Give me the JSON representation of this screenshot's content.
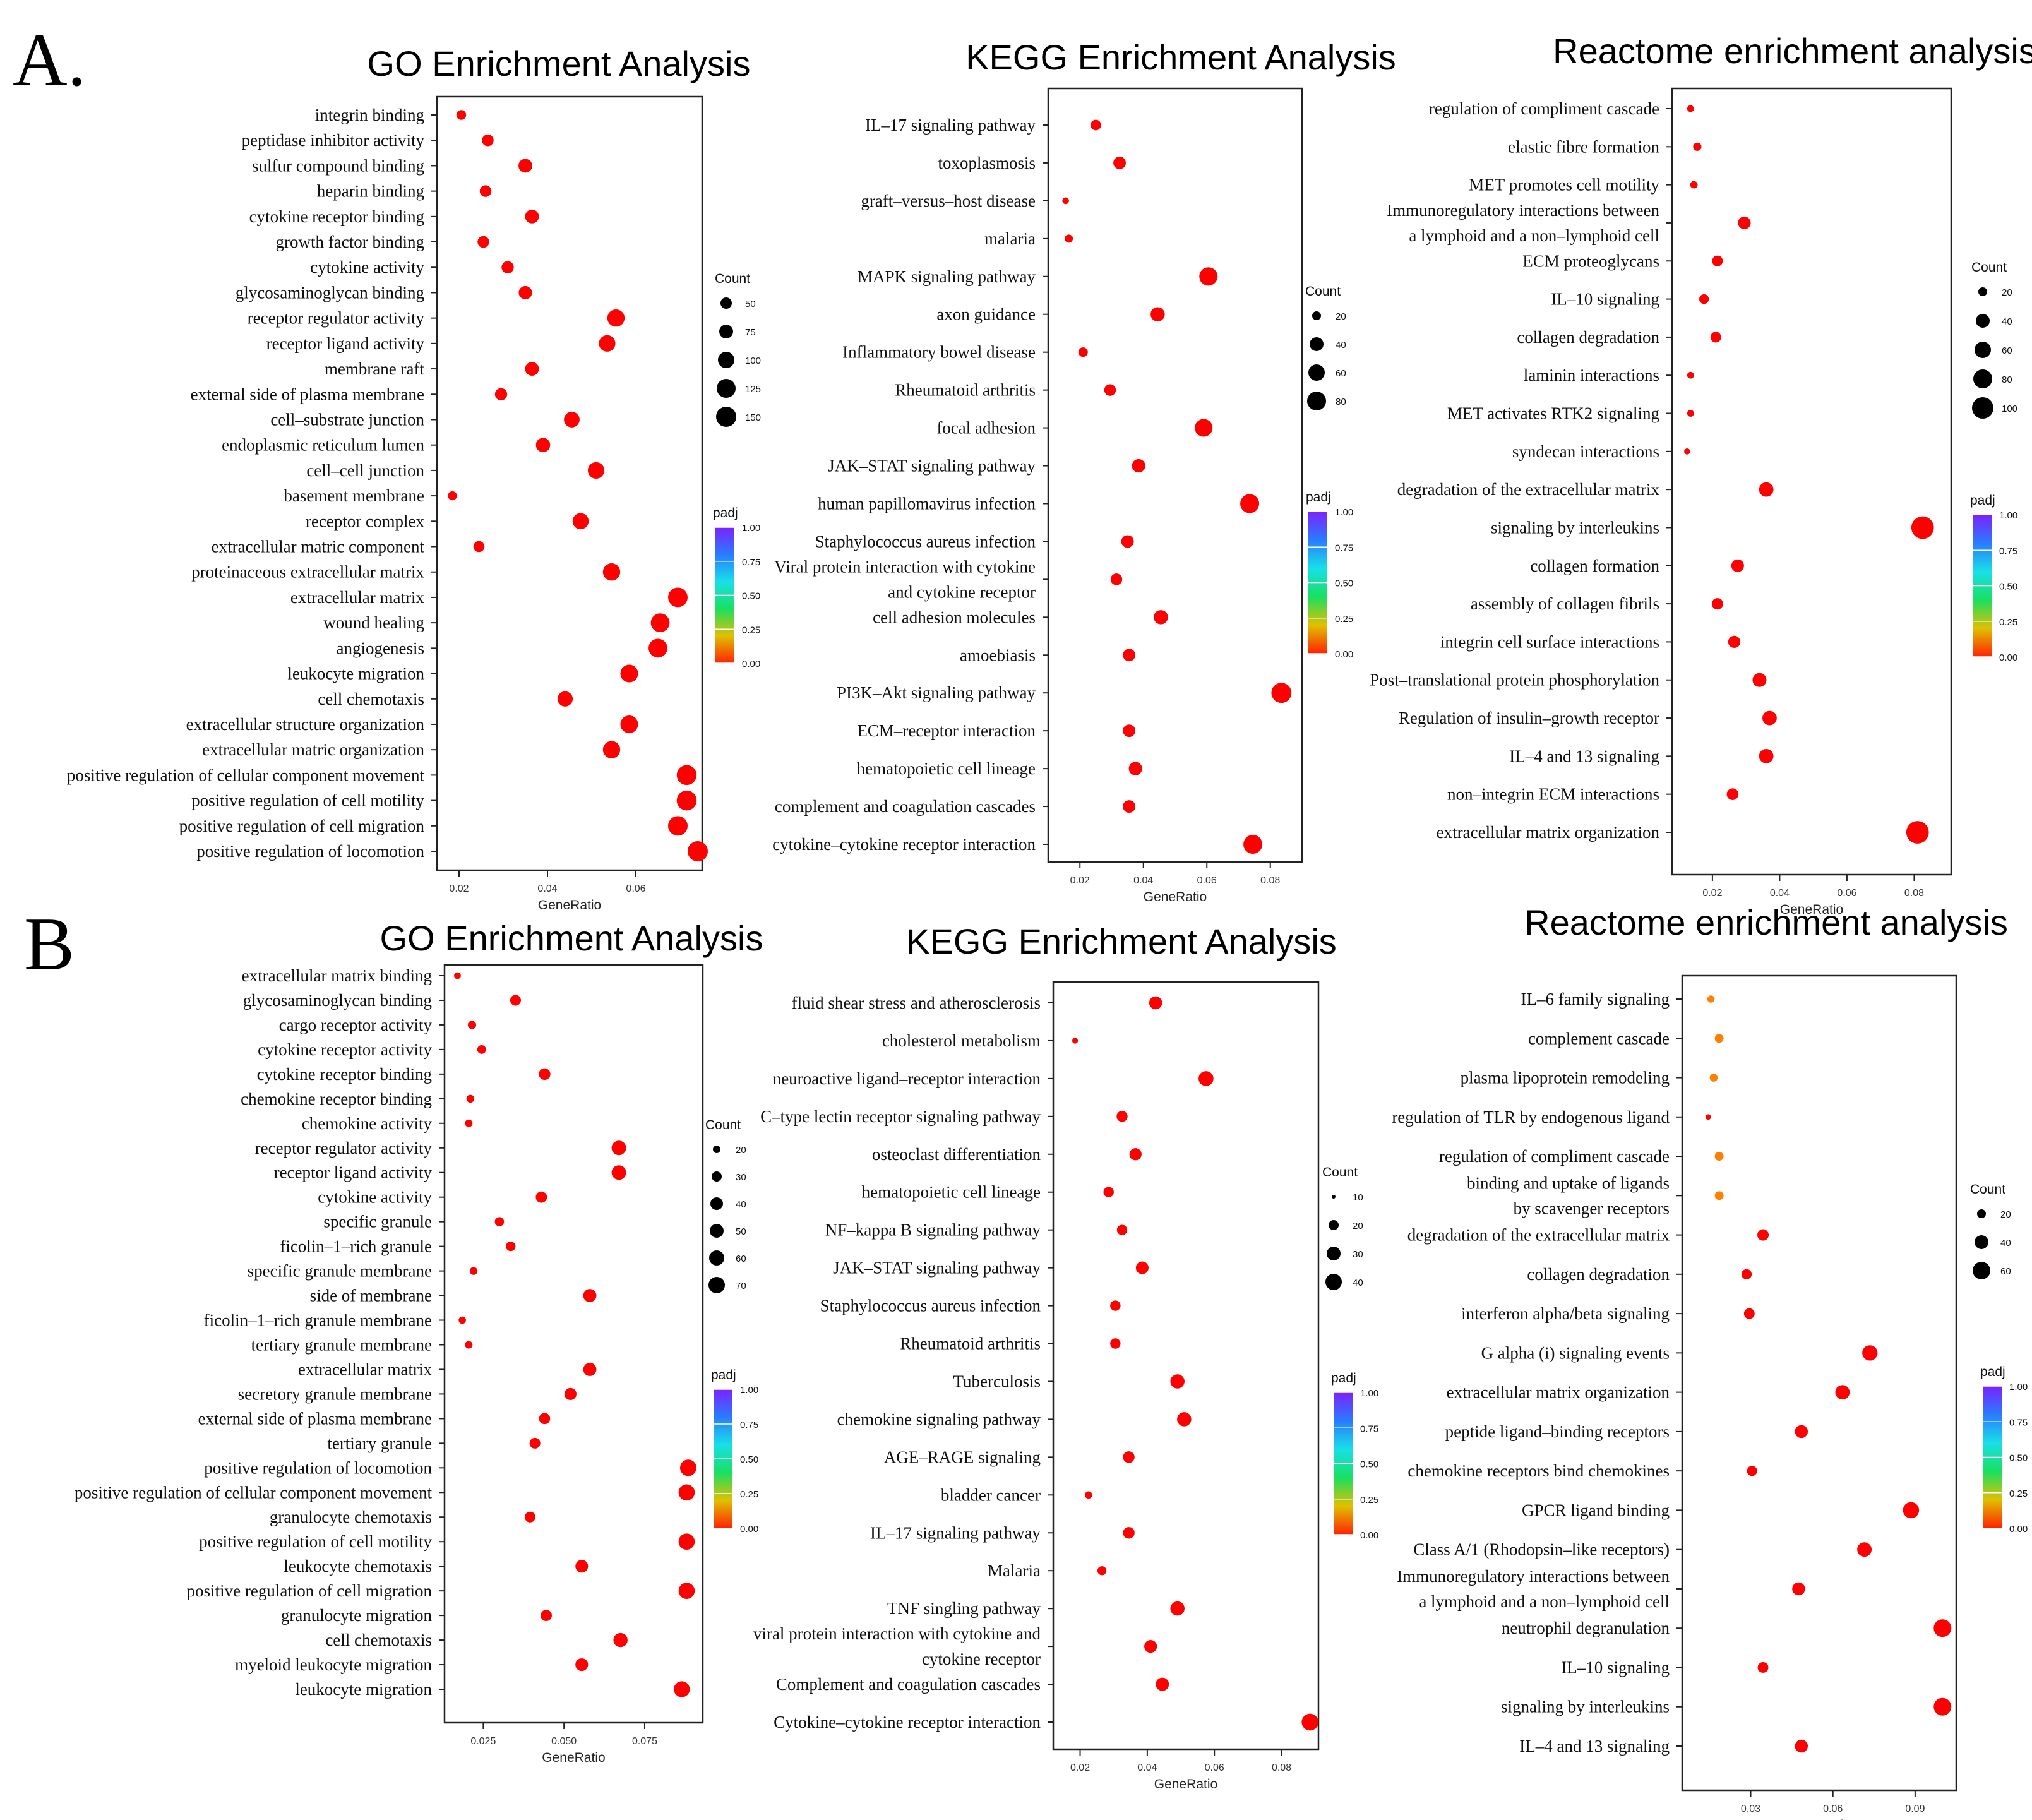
{
  "panel_labels": [
    "A.",
    "B"
  ],
  "legend_text": {
    "count": "Count",
    "padj": "padj",
    "padj_ticks": [
      "1.00",
      "0.75",
      "0.50",
      "0.25",
      "0.00"
    ]
  },
  "colors": {
    "high_sig": "#ff0000",
    "low_sig": "#ff7f00",
    "frame": "#222222"
  },
  "chart_data": [
    {
      "type": "scatter",
      "title": "GO Enrichment Analysis",
      "xlabel": "GeneRatio",
      "xlim": [
        0.015,
        0.075
      ],
      "xticks": [
        0.02,
        0.04,
        0.06
      ],
      "tick_labels": [
        "0.02",
        "0.04",
        "0.06"
      ],
      "count_legend": [
        50,
        75,
        100,
        125,
        150
      ],
      "terms": [
        "integrin binding",
        "peptidase inhibitor activity",
        "sulfur compound binding",
        "heparin binding",
        "cytokine receptor binding",
        "growth factor binding",
        "cytokine activity",
        "glycosaminoglycan binding",
        "receptor regulator activity",
        "receptor ligand activity",
        "membrane raft",
        "external side of plasma membrane",
        "cell–substrate junction",
        "endoplasmic reticulum lumen",
        "cell–cell junction",
        "basement membrane",
        "receptor complex",
        "extracellular matric component",
        "proteinaceous extracellular matrix",
        "extracellular matrix",
        "wound healing",
        "angiogenesis",
        "leukocyte migration",
        "cell chemotaxis",
        "extracellular structure organization",
        "extracellular matric organization",
        "positive regulation of cellular component movement",
        "positive regulation of cell motility",
        "positive regulation of cell migration",
        "positive regulation of locomotion"
      ],
      "x": [
        0.0205,
        0.0265,
        0.035,
        0.026,
        0.0365,
        0.0255,
        0.031,
        0.035,
        0.0555,
        0.0535,
        0.0365,
        0.0295,
        0.0455,
        0.039,
        0.051,
        0.0185,
        0.0475,
        0.0245,
        0.0545,
        0.0695,
        0.0655,
        0.065,
        0.0585,
        0.044,
        0.0585,
        0.0545,
        0.0715,
        0.0715,
        0.0695,
        0.074
      ],
      "count": [
        35,
        50,
        70,
        50,
        70,
        50,
        55,
        65,
        110,
        100,
        70,
        55,
        90,
        75,
        100,
        30,
        95,
        45,
        110,
        140,
        130,
        130,
        115,
        85,
        115,
        110,
        145,
        145,
        140,
        150
      ],
      "padj": [
        0,
        0,
        0,
        0,
        0,
        0,
        0,
        0,
        0,
        0,
        0,
        0,
        0,
        0,
        0,
        0,
        0,
        0,
        0,
        0,
        0,
        0,
        0,
        0,
        0,
        0,
        0,
        0,
        0,
        0
      ]
    },
    {
      "type": "scatter",
      "title": "KEGG Enrichment Analysis",
      "xlabel": "GeneRatio",
      "xlim": [
        0.01,
        0.09
      ],
      "xticks": [
        0.02,
        0.04,
        0.06,
        0.08
      ],
      "tick_labels": [
        "0.02",
        "0.04",
        "0.06",
        "0.08"
      ],
      "count_legend": [
        20,
        40,
        60,
        80
      ],
      "terms": [
        "IL–17 signaling pathway",
        "toxoplasmosis",
        "graft–versus–host disease",
        "malaria",
        "MAPK signaling pathway",
        "axon guidance",
        "Inflammatory bowel disease",
        "Rheumatoid arthritis",
        "focal adhesion",
        "JAK–STAT signaling pathway",
        "human papillomavirus infection",
        "Staphylococcus aureus infection",
        "Viral protein interaction with cytokine\nand cytokine receptor",
        "cell adhesion molecules",
        "amoebiasis",
        "PI3K–Akt signaling pathway",
        "ECM–receptor interaction",
        "hematopoietic cell lineage",
        "complement and coagulation cascades",
        "cytokine–cytokine receptor interaction"
      ],
      "x": [
        0.025,
        0.0325,
        0.0155,
        0.0165,
        0.0605,
        0.0445,
        0.021,
        0.0295,
        0.059,
        0.0385,
        0.0735,
        0.035,
        0.0315,
        0.0455,
        0.0355,
        0.0835,
        0.0355,
        0.0375,
        0.0355,
        0.0745
      ],
      "count": [
        25,
        35,
        10,
        15,
        75,
        45,
        20,
        30,
        70,
        40,
        80,
        35,
        30,
        45,
        35,
        90,
        35,
        40,
        35,
        80
      ],
      "padj": [
        0,
        0,
        0,
        0,
        0,
        0,
        0,
        0,
        0,
        0,
        0,
        0,
        0,
        0,
        0,
        0,
        0,
        0,
        0,
        0
      ]
    },
    {
      "type": "scatter",
      "title": "Reactome enrichment analysis",
      "xlabel": "GeneRatio",
      "xlim": [
        0.008,
        0.091
      ],
      "xticks": [
        0.02,
        0.04,
        0.06,
        0.08
      ],
      "tick_labels": [
        "0.02",
        "0.04",
        "0.06",
        "0.08"
      ],
      "count_legend": [
        20,
        40,
        60,
        80,
        100
      ],
      "terms": [
        "regulation of compliment cascade",
        "elastic fibre formation",
        "MET promotes cell motility",
        "Immunoregulatory interactions between\na lymphoid and a non–lymphoid cell",
        "ECM proteoglycans",
        "IL–10 signaling",
        "collagen degradation",
        "laminin interactions",
        "MET activates RTK2 signaling",
        "syndecan interactions",
        "degradation of the extracellular matrix",
        "signaling by interleukins",
        "collagen formation",
        "assembly of collagen fibrils",
        "integrin cell surface interactions",
        "Post–translational protein phosphorylation",
        "Regulation of insulin–growth receptor",
        "IL–4 and 13 signaling",
        "non–integrin ECM interactions",
        "extracellular matrix organization"
      ],
      "x": [
        0.0135,
        0.0155,
        0.0145,
        0.0295,
        0.0215,
        0.0175,
        0.021,
        0.0135,
        0.0135,
        0.0125,
        0.036,
        0.0825,
        0.0275,
        0.0215,
        0.0265,
        0.034,
        0.037,
        0.036,
        0.026,
        0.081
      ],
      "count": [
        10,
        15,
        12,
        35,
        25,
        20,
        25,
        10,
        10,
        8,
        45,
        110,
        35,
        28,
        32,
        42,
        45,
        45,
        30,
        110
      ],
      "padj": [
        0,
        0,
        0,
        0,
        0,
        0,
        0,
        0,
        0,
        0,
        0,
        0,
        0,
        0,
        0,
        0,
        0,
        0,
        0,
        0
      ]
    },
    {
      "type": "scatter",
      "title": "GO Enrichment Analysis",
      "xlabel": "GeneRatio",
      "xlim": [
        0.013,
        0.093
      ],
      "xticks": [
        0.025,
        0.05,
        0.075
      ],
      "tick_labels": [
        "0.025",
        "0.050",
        "0.075"
      ],
      "count_legend": [
        20,
        30,
        40,
        50,
        60,
        70
      ],
      "terms": [
        "extracellular matrix binding",
        "glycosaminoglycan binding",
        "cargo receptor activity",
        "cytokine receptor activity",
        "cytokine receptor binding",
        "chemokine receptor binding",
        "chemokine activity",
        "receptor regulator activity",
        "receptor ligand activity",
        "cytokine activity",
        "specific granule",
        "ficolin–1–rich granule",
        "specific granule membrane",
        "side of membrane",
        "ficolin–1–rich granule membrane",
        "tertiary granule membrane",
        "extracellular matrix",
        "secretory granule membrane",
        "external side of plasma membrane",
        "tertiary granule",
        "positive regulation of locomotion",
        "positive regulation of cellular component movement",
        "granulocyte chemotaxis",
        "positive regulation of cell motility",
        "leukocyte chemotaxis",
        "positive regulation of cell migration",
        "granulocyte migration",
        "cell chemotaxis",
        "myeloid leukocyte migration",
        "leukocyte migration"
      ],
      "x": [
        0.017,
        0.035,
        0.0215,
        0.0245,
        0.044,
        0.021,
        0.0205,
        0.067,
        0.067,
        0.043,
        0.03,
        0.0335,
        0.022,
        0.058,
        0.0185,
        0.0205,
        0.058,
        0.052,
        0.044,
        0.041,
        0.0885,
        0.088,
        0.0395,
        0.088,
        0.0555,
        0.088,
        0.0445,
        0.0675,
        0.0555,
        0.0865
      ],
      "count": [
        12,
        30,
        18,
        20,
        35,
        16,
        15,
        55,
        55,
        33,
        22,
        24,
        16,
        45,
        14,
        15,
        45,
        38,
        32,
        30,
        70,
        68,
        30,
        68,
        42,
        68,
        33,
        52,
        42,
        66
      ],
      "padj": [
        0,
        0,
        0,
        0,
        0,
        0,
        0,
        0,
        0,
        0,
        0,
        0,
        0,
        0,
        0,
        0,
        0,
        0,
        0,
        0,
        0,
        0,
        0,
        0,
        0,
        0,
        0,
        0,
        0,
        0
      ]
    },
    {
      "type": "scatter",
      "title": "KEGG Enrichment Analysis",
      "xlabel": "GeneRatio",
      "xlim": [
        0.012,
        0.091
      ],
      "xticks": [
        0.02,
        0.04,
        0.06,
        0.08
      ],
      "tick_labels": [
        "0.02",
        "0.04",
        "0.06",
        "0.08"
      ],
      "count_legend": [
        10,
        20,
        30,
        40
      ],
      "terms": [
        "fluid shear stress and atherosclerosis",
        "cholesterol metabolism",
        "neuroactive ligand–receptor interaction",
        "C–type lectin receptor signaling pathway",
        "osteoclast differentiation",
        "hematopoietic cell lineage",
        "NF–kappa B signaling pathway",
        "JAK–STAT signaling pathway",
        "Staphylococcus aureus infection",
        "Rheumatoid arthritis",
        "Tuberculosis",
        "chemokine signaling pathway",
        "AGE–RAGE signaling",
        "bladder cancer",
        "IL–17 signaling pathway",
        "Malaria",
        "TNF singling pathway",
        "viral protein interaction with cytokine and\ncytokine receptor",
        "Complement and coagulation cascades",
        "Cytokine–cytokine receptor interaction"
      ],
      "x": [
        0.0425,
        0.0185,
        0.0575,
        0.0325,
        0.0365,
        0.0285,
        0.0325,
        0.0385,
        0.0305,
        0.0305,
        0.049,
        0.051,
        0.0345,
        0.0225,
        0.0345,
        0.0265,
        0.049,
        0.041,
        0.0445,
        0.0885
      ],
      "count": [
        25,
        5,
        33,
        18,
        22,
        16,
        16,
        24,
        16,
        16,
        30,
        30,
        20,
        8,
        20,
        12,
        30,
        24,
        26,
        42
      ],
      "padj": [
        0,
        0,
        0,
        0,
        0,
        0,
        0,
        0,
        0,
        0,
        0,
        0,
        0,
        0,
        0,
        0,
        0,
        0,
        0,
        0
      ]
    },
    {
      "type": "scatter",
      "title": "Reactome enrichment analysis",
      "xlabel": "GeneRatio",
      "xlim": [
        0.005,
        0.105
      ],
      "xticks": [
        0.03,
        0.06,
        0.09
      ],
      "tick_labels": [
        "0.03",
        "0.06",
        "0.09"
      ],
      "count_legend": [
        20,
        40,
        60
      ],
      "terms": [
        "IL–6 family signaling",
        "complement cascade",
        "plasma lipoprotein remodeling",
        "regulation of TLR by endogenous ligand",
        "regulation of compliment cascade",
        "binding and uptake of ligands\nby scavenger receptors",
        "degradation of the extracellular matrix",
        "collagen degradation",
        "interferon alpha/beta signaling",
        "G alpha (i) signaling events",
        "extracellular matrix organization",
        "peptide ligand–binding receptors",
        "chemokine receptors bind chemokines",
        "GPCR ligand binding",
        "Class A/1 (Rhodopsin–like receptors)",
        "Immunoregulatory interactions between\na lymphoid and a non–lymphoid cell",
        "neutrophil degranulation",
        "IL–10 signaling",
        "signaling by interleukins",
        "IL–4 and 13 signaling"
      ],
      "x": [
        0.0155,
        0.0185,
        0.0165,
        0.0145,
        0.0185,
        0.0185,
        0.0345,
        0.0285,
        0.0295,
        0.0735,
        0.0635,
        0.0485,
        0.0305,
        0.0885,
        0.0715,
        0.0475,
        0.1,
        0.0345,
        0.1,
        0.0485
      ],
      "count": [
        10,
        15,
        12,
        6,
        15,
        15,
        25,
        20,
        22,
        45,
        40,
        32,
        20,
        50,
        40,
        32,
        60,
        22,
        60,
        32
      ],
      "padj": [
        0.1,
        0.2,
        0.08,
        0.02,
        0.05,
        0.05,
        0,
        0,
        0,
        0,
        0,
        0,
        0,
        0,
        0,
        0,
        0,
        0,
        0,
        0
      ]
    }
  ]
}
